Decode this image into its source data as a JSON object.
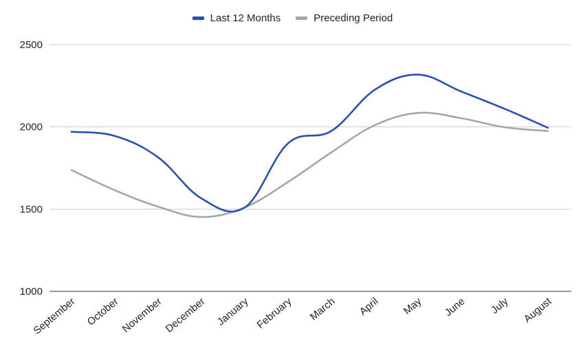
{
  "chart_data": {
    "type": "line",
    "categories": [
      "September",
      "October",
      "November",
      "December",
      "January",
      "February",
      "March",
      "April",
      "May",
      "June",
      "July",
      "August"
    ],
    "series": [
      {
        "name": "Last 12 Months",
        "color": "#2850b4",
        "values": [
          1970,
          1945,
          1815,
          1565,
          1510,
          1900,
          1975,
          2225,
          2318,
          2215,
          2110,
          1995
        ]
      },
      {
        "name": "Preceding Period",
        "color": "#a6a6a6",
        "values": [
          1737,
          1615,
          1515,
          1452,
          1510,
          1665,
          1845,
          2010,
          2085,
          2053,
          1998,
          1975
        ]
      }
    ],
    "ylim": [
      1000,
      2500
    ],
    "yticks": [
      1000,
      1500,
      2000,
      2500
    ],
    "grid": true,
    "legend_position": "top-center",
    "smooth": true
  }
}
